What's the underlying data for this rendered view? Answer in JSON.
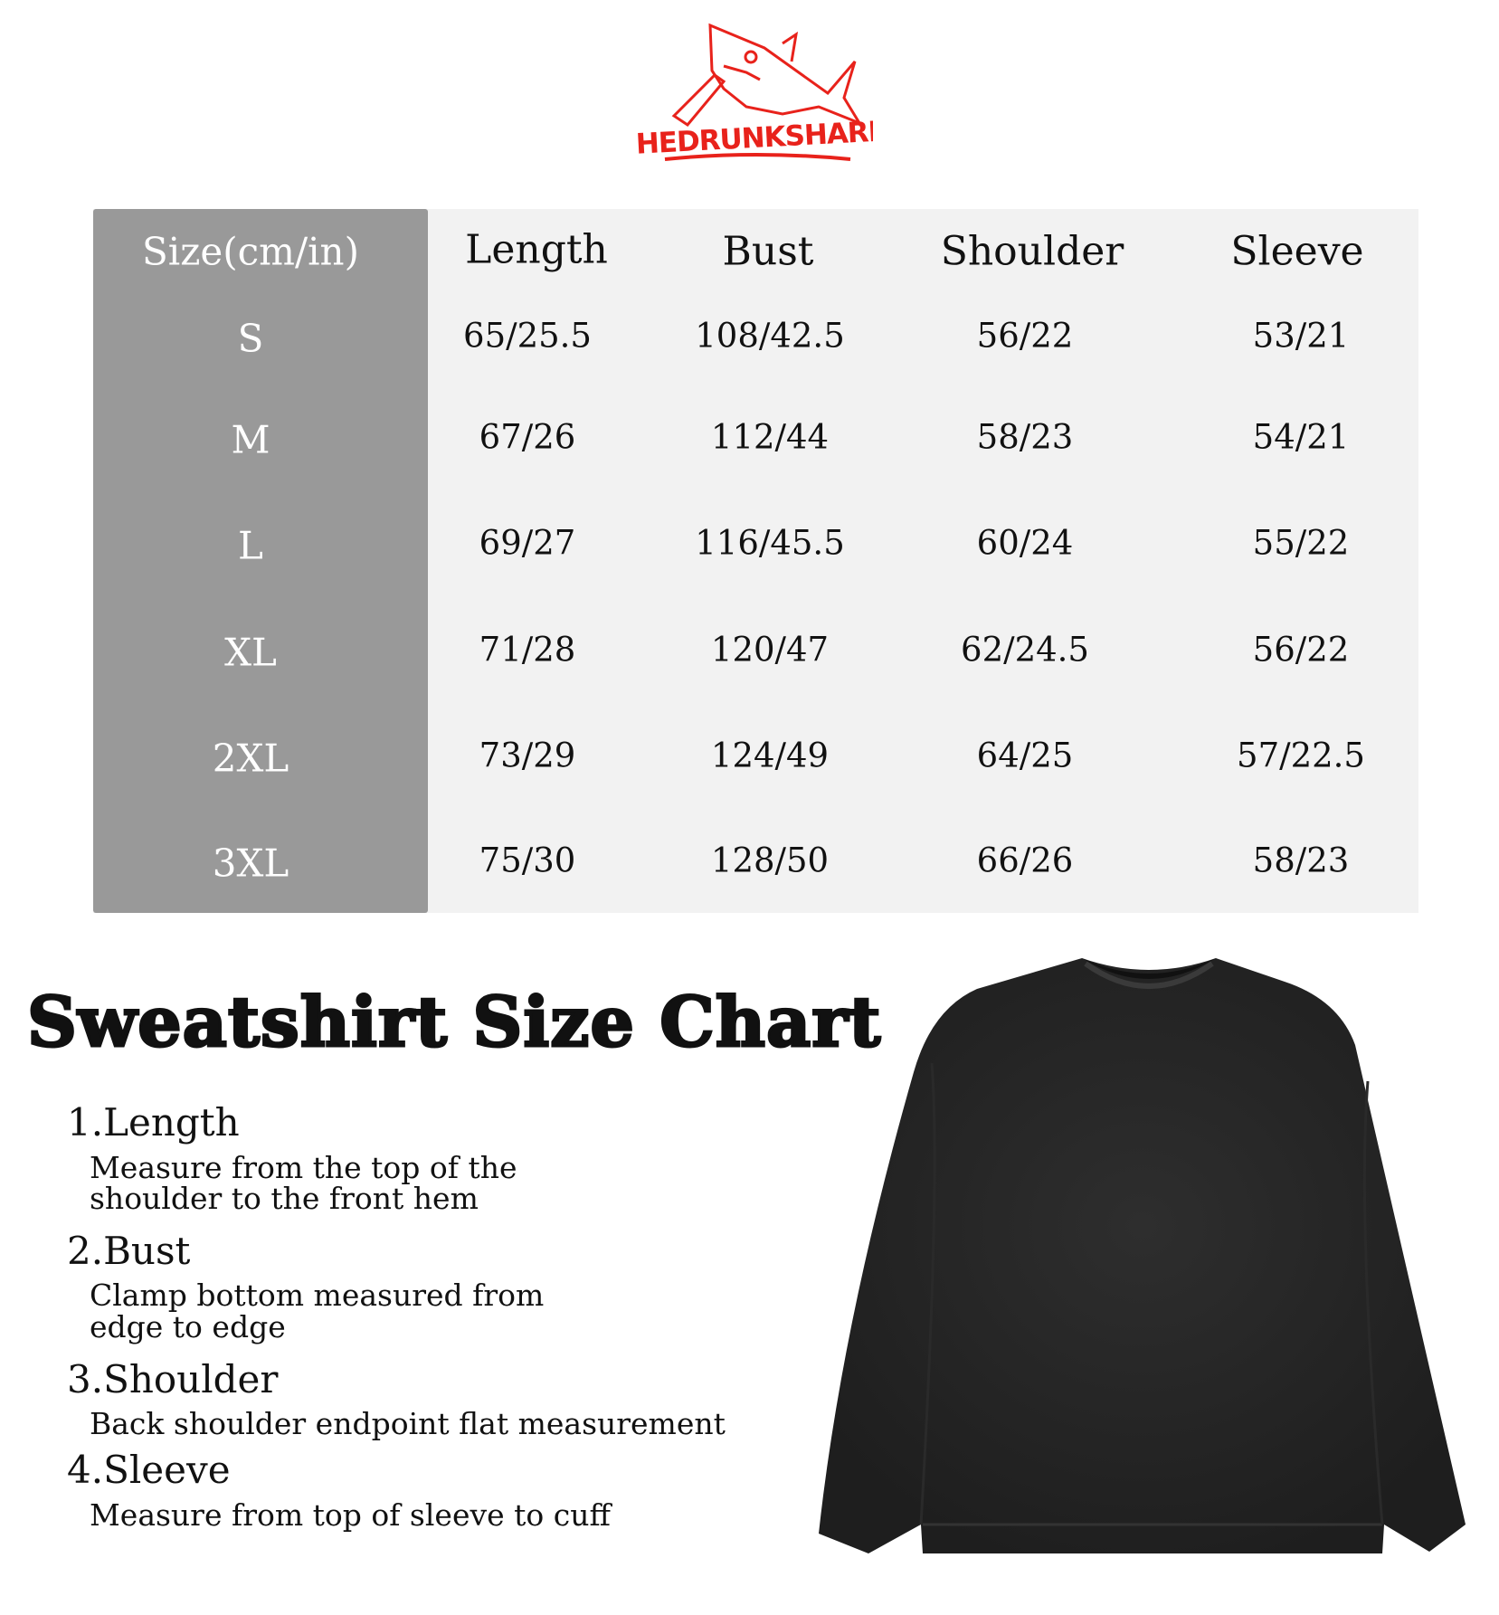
{
  "brand": {
    "logo_text": "THEDRUNKSHARK",
    "logo_color": "#e8221b"
  },
  "table": {
    "headers": [
      "Size(cm/in)",
      "Length",
      "Bust",
      "Shoulder",
      "Sleeve"
    ],
    "rows": [
      {
        "size": "S",
        "length": "65/25.5",
        "bust": "108/42.5",
        "shoulder": "56/22",
        "sleeve": "53/21"
      },
      {
        "size": "M",
        "length": "67/26",
        "bust": "112/44",
        "shoulder": "58/23",
        "sleeve": "54/21"
      },
      {
        "size": "L",
        "length": "69/27",
        "bust": "116/45.5",
        "shoulder": "60/24",
        "sleeve": "55/22"
      },
      {
        "size": "XL",
        "length": "71/28",
        "bust": "120/47",
        "shoulder": "62/24.5",
        "sleeve": "56/22"
      },
      {
        "size": "2XL",
        "length": "73/29",
        "bust": "124/49",
        "shoulder": "64/25",
        "sleeve": "57/22.5"
      },
      {
        "size": "3XL",
        "length": "75/30",
        "bust": "128/50",
        "shoulder": "66/26",
        "sleeve": "58/23"
      }
    ]
  },
  "title": "Sweatshirt Size Chart",
  "measures": [
    {
      "heading": "1.Length",
      "lines": [
        "Measure from the top of the",
        "shoulder to the front hem"
      ]
    },
    {
      "heading": "2.Bust",
      "lines": [
        "Clamp bottom measured from",
        "edge to edge"
      ]
    },
    {
      "heading": "3.Shoulder",
      "lines": [
        "Back shoulder endpoint flat measurement"
      ]
    },
    {
      "heading": "4.Sleeve",
      "lines": [
        "Measure from top of sleeve to cuff"
      ]
    }
  ],
  "product_image": "black-crewneck-sweatshirt"
}
